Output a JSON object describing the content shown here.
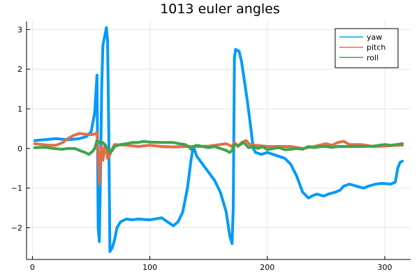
{
  "chart_data": {
    "type": "line",
    "title": "1013 euler angles",
    "xlim": [
      -5,
      322
    ],
    "ylim": [
      -2.8,
      3.2
    ],
    "xticks": [
      0,
      100,
      200,
      300
    ],
    "yticks": [
      -2,
      -1,
      0,
      1,
      2,
      3
    ],
    "grid": true,
    "legend_position": "top-right",
    "series": [
      {
        "name": "yaw",
        "color": "#009AFA",
        "points": [
          [
            2,
            0.2
          ],
          [
            10,
            0.22
          ],
          [
            20,
            0.25
          ],
          [
            30,
            0.22
          ],
          [
            40,
            0.25
          ],
          [
            46,
            0.3
          ],
          [
            50,
            0.42
          ],
          [
            53,
            0.9
          ],
          [
            55,
            1.85
          ],
          [
            56,
            -2.0
          ],
          [
            57,
            -2.35
          ],
          [
            58,
            -0.5
          ],
          [
            59,
            1.5
          ],
          [
            60,
            2.6
          ],
          [
            63,
            3.05
          ],
          [
            64,
            2.7
          ],
          [
            65,
            0.5
          ],
          [
            66,
            -2.6
          ],
          [
            68,
            -2.5
          ],
          [
            70,
            -2.3
          ],
          [
            72,
            -2.0
          ],
          [
            75,
            -1.85
          ],
          [
            80,
            -1.78
          ],
          [
            85,
            -1.8
          ],
          [
            90,
            -1.78
          ],
          [
            100,
            -1.8
          ],
          [
            110,
            -1.75
          ],
          [
            115,
            -1.85
          ],
          [
            120,
            -1.95
          ],
          [
            124,
            -1.85
          ],
          [
            128,
            -1.6
          ],
          [
            132,
            -1.0
          ],
          [
            135,
            -0.3
          ],
          [
            137,
            0.05
          ],
          [
            140,
            -0.2
          ],
          [
            145,
            -0.4
          ],
          [
            150,
            -0.6
          ],
          [
            155,
            -0.8
          ],
          [
            160,
            -1.1
          ],
          [
            165,
            -1.6
          ],
          [
            168,
            -2.2
          ],
          [
            170,
            -2.4
          ],
          [
            171,
            -1.5
          ],
          [
            172,
            2.3
          ],
          [
            173,
            2.5
          ],
          [
            176,
            2.45
          ],
          [
            178,
            2.2
          ],
          [
            180,
            1.8
          ],
          [
            183,
            1.2
          ],
          [
            186,
            0.5
          ],
          [
            188,
            0.0
          ],
          [
            190,
            -0.1
          ],
          [
            195,
            -0.15
          ],
          [
            200,
            -0.1
          ],
          [
            205,
            -0.15
          ],
          [
            210,
            -0.2
          ],
          [
            215,
            -0.25
          ],
          [
            220,
            -0.4
          ],
          [
            225,
            -0.7
          ],
          [
            230,
            -1.1
          ],
          [
            235,
            -1.25
          ],
          [
            238,
            -1.2
          ],
          [
            242,
            -1.15
          ],
          [
            248,
            -1.2
          ],
          [
            252,
            -1.15
          ],
          [
            258,
            -1.1
          ],
          [
            262,
            -1.05
          ],
          [
            265,
            -0.95
          ],
          [
            270,
            -0.9
          ],
          [
            276,
            -0.95
          ],
          [
            282,
            -1.0
          ],
          [
            286,
            -0.95
          ],
          [
            292,
            -0.9
          ],
          [
            298,
            -0.88
          ],
          [
            305,
            -0.9
          ],
          [
            309,
            -0.85
          ],
          [
            311,
            -0.5
          ],
          [
            313,
            -0.35
          ],
          [
            315,
            -0.32
          ]
        ]
      },
      {
        "name": "pitch",
        "color": "#E26F46",
        "points": [
          [
            2,
            0.12
          ],
          [
            8,
            0.1
          ],
          [
            14,
            0.08
          ],
          [
            20,
            0.08
          ],
          [
            26,
            0.15
          ],
          [
            30,
            0.25
          ],
          [
            35,
            0.33
          ],
          [
            40,
            0.38
          ],
          [
            45,
            0.36
          ],
          [
            50,
            0.35
          ],
          [
            53,
            0.36
          ],
          [
            55,
            0.4
          ],
          [
            56,
            -0.2
          ],
          [
            57,
            -0.9
          ],
          [
            58,
            -0.1
          ],
          [
            59,
            0.05
          ],
          [
            60,
            -0.3
          ],
          [
            62,
            0.1
          ],
          [
            64,
            -0.25
          ],
          [
            66,
            -0.15
          ],
          [
            68,
            0.0
          ],
          [
            70,
            0.1
          ],
          [
            80,
            0.08
          ],
          [
            90,
            0.05
          ],
          [
            100,
            0.08
          ],
          [
            110,
            0.05
          ],
          [
            120,
            0.04
          ],
          [
            130,
            0.05
          ],
          [
            140,
            0.05
          ],
          [
            150,
            0.06
          ],
          [
            160,
            0.1
          ],
          [
            165,
            0.12
          ],
          [
            170,
            0.05
          ],
          [
            172,
            0.15
          ],
          [
            175,
            0.05
          ],
          [
            178,
            0.15
          ],
          [
            182,
            0.2
          ],
          [
            185,
            0.1
          ],
          [
            190,
            0.08
          ],
          [
            200,
            0.05
          ],
          [
            210,
            0.05
          ],
          [
            220,
            0.05
          ],
          [
            230,
            0.0
          ],
          [
            240,
            0.05
          ],
          [
            250,
            0.12
          ],
          [
            255,
            0.08
          ],
          [
            260,
            0.15
          ],
          [
            265,
            0.18
          ],
          [
            270,
            0.1
          ],
          [
            280,
            0.1
          ],
          [
            290,
            0.05
          ],
          [
            300,
            0.06
          ],
          [
            310,
            0.08
          ],
          [
            315,
            0.08
          ]
        ]
      },
      {
        "name": "roll",
        "color": "#3DA44D",
        "points": [
          [
            2,
            0.02
          ],
          [
            10,
            0.03
          ],
          [
            18,
            0.0
          ],
          [
            25,
            -0.02
          ],
          [
            30,
            0.0
          ],
          [
            36,
            0.0
          ],
          [
            40,
            -0.05
          ],
          [
            45,
            -0.1
          ],
          [
            48,
            -0.15
          ],
          [
            51,
            -0.08
          ],
          [
            53,
            0.0
          ],
          [
            55,
            0.2
          ],
          [
            57,
            0.15
          ],
          [
            60,
            0.15
          ],
          [
            64,
            0.0
          ],
          [
            66,
            -0.1
          ],
          [
            68,
            -0.05
          ],
          [
            70,
            0.05
          ],
          [
            75,
            0.1
          ],
          [
            80,
            0.12
          ],
          [
            85,
            0.15
          ],
          [
            90,
            0.15
          ],
          [
            95,
            0.18
          ],
          [
            100,
            0.16
          ],
          [
            110,
            0.15
          ],
          [
            120,
            0.15
          ],
          [
            125,
            0.12
          ],
          [
            130,
            0.1
          ],
          [
            133,
            0.05
          ],
          [
            135,
            -0.02
          ],
          [
            137,
            0.05
          ],
          [
            140,
            0.08
          ],
          [
            145,
            0.05
          ],
          [
            150,
            0.02
          ],
          [
            155,
            0.05
          ],
          [
            160,
            0.0
          ],
          [
            165,
            -0.05
          ],
          [
            168,
            -0.1
          ],
          [
            170,
            -0.05
          ],
          [
            172,
            0.1
          ],
          [
            176,
            0.08
          ],
          [
            180,
            0.15
          ],
          [
            184,
            0.02
          ],
          [
            188,
            0.05
          ],
          [
            192,
            0.0
          ],
          [
            196,
            0.05
          ],
          [
            200,
            -0.03
          ],
          [
            205,
            0.0
          ],
          [
            210,
            0.02
          ],
          [
            215,
            -0.03
          ],
          [
            220,
            -0.02
          ],
          [
            225,
            0.0
          ],
          [
            230,
            -0.02
          ],
          [
            235,
            0.05
          ],
          [
            240,
            0.02
          ],
          [
            245,
            0.05
          ],
          [
            250,
            0.05
          ],
          [
            255,
            0.03
          ],
          [
            260,
            0.05
          ],
          [
            270,
            0.05
          ],
          [
            280,
            0.05
          ],
          [
            290,
            0.06
          ],
          [
            295,
            0.08
          ],
          [
            300,
            0.1
          ],
          [
            305,
            0.08
          ],
          [
            310,
            0.1
          ],
          [
            315,
            0.12
          ]
        ]
      }
    ]
  }
}
